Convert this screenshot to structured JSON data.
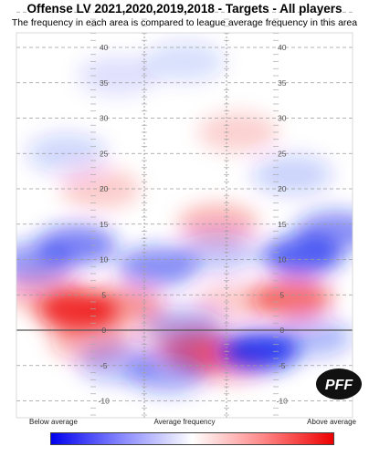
{
  "chart_data": {
    "type": "heatmap",
    "title": "Offense LV 2021,2020,2019,2018 - Targets - All players",
    "subtitle": "The frequency in each area is compared to league average frequency in this area",
    "ylim": [
      -12,
      45
    ],
    "yticks": [
      40,
      35,
      30,
      25,
      20,
      15,
      10,
      5,
      0,
      -5,
      -10
    ],
    "grid": true,
    "legend": {
      "position": "bottom",
      "labels": [
        "Below average",
        "Average frequency",
        "Above average"
      ],
      "colors": [
        "#0000ee",
        "#ffffff",
        "#ee0000"
      ]
    },
    "blobs": [
      {
        "x": 0.18,
        "y": 2.8,
        "value": 0.85
      },
      {
        "x": 0.32,
        "y": 3.5,
        "value": 0.45
      },
      {
        "x": 0.08,
        "y": 5.5,
        "value": 0.3
      },
      {
        "x": 0.82,
        "y": 4.5,
        "value": 0.6
      },
      {
        "x": 0.65,
        "y": 4.0,
        "value": 0.2
      },
      {
        "x": 0.22,
        "y": -1.5,
        "value": 0.35
      },
      {
        "x": 0.55,
        "y": -3.0,
        "value": 0.55
      },
      {
        "x": 0.48,
        "y": -1.0,
        "value": 0.2
      },
      {
        "x": 0.63,
        "y": -4.5,
        "value": 0.35
      },
      {
        "x": 0.6,
        "y": 15.0,
        "value": 0.3
      },
      {
        "x": 0.66,
        "y": 28.0,
        "value": 0.18
      },
      {
        "x": 0.25,
        "y": 20.0,
        "value": 0.2
      },
      {
        "x": 0.18,
        "y": 12.0,
        "value": -0.55
      },
      {
        "x": 0.42,
        "y": 9.0,
        "value": -0.5
      },
      {
        "x": 0.6,
        "y": 11.0,
        "value": -0.25
      },
      {
        "x": 0.85,
        "y": 10.5,
        "value": -0.7
      },
      {
        "x": 0.95,
        "y": 14.0,
        "value": -0.5
      },
      {
        "x": 0.05,
        "y": 9.5,
        "value": -0.45
      },
      {
        "x": 0.72,
        "y": -3.0,
        "value": -0.85
      },
      {
        "x": 0.88,
        "y": -1.0,
        "value": -0.3
      },
      {
        "x": 0.45,
        "y": -6.0,
        "value": -0.4
      },
      {
        "x": 0.3,
        "y": -4.5,
        "value": -0.3
      },
      {
        "x": 0.5,
        "y": 0.5,
        "value": -0.3
      },
      {
        "x": 0.15,
        "y": 25.0,
        "value": -0.18
      },
      {
        "x": 0.82,
        "y": 22.0,
        "value": -0.2
      },
      {
        "x": 0.5,
        "y": 38.0,
        "value": -0.15
      },
      {
        "x": 0.3,
        "y": 36.0,
        "value": -0.12
      }
    ]
  },
  "logo": {
    "text": "PFF"
  }
}
